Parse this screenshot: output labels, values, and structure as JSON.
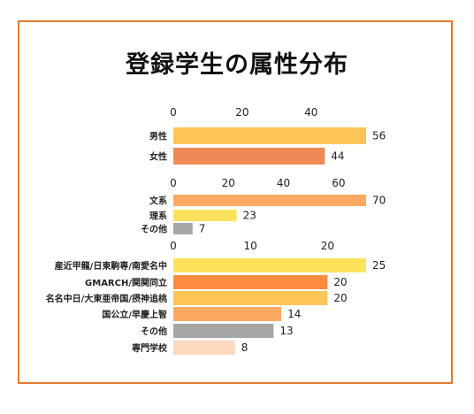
{
  "title": "登録学生の属性分布",
  "chart_data": [
    {
      "type": "bar",
      "orientation": "horizontal",
      "categories": [
        "男性",
        "女性"
      ],
      "values": [
        56,
        44
      ],
      "colors": [
        "#fdc458",
        "#ee8a55"
      ],
      "xticks": [
        0,
        20,
        40
      ],
      "xlim": [
        0,
        56
      ],
      "grid": false
    },
    {
      "type": "bar",
      "orientation": "horizontal",
      "categories": [
        "文系",
        "理系",
        "その他"
      ],
      "values": [
        70,
        23,
        7
      ],
      "colors": [
        "#fca962",
        "#fee25d",
        "#a7a7a7"
      ],
      "xticks": [
        0,
        20,
        40,
        60
      ],
      "xlim": [
        0,
        70
      ],
      "grid": false
    },
    {
      "type": "bar",
      "orientation": "horizontal",
      "categories": [
        "産近甲龍/日東駒専/南愛名中",
        "GMARCH/関関同立",
        "名名中日/大東亜帝国/摂神追桃",
        "国公立/早慶上智",
        "その他",
        "専門学校"
      ],
      "values": [
        25,
        20,
        20,
        14,
        13,
        8
      ],
      "colors": [
        "#fee25d",
        "#fe8b3f",
        "#fdc458",
        "#fca962",
        "#a7a7a7",
        "#fcd9bf"
      ],
      "xticks": [
        0,
        10,
        20
      ],
      "xlim": [
        0,
        25
      ],
      "grid": false
    }
  ]
}
